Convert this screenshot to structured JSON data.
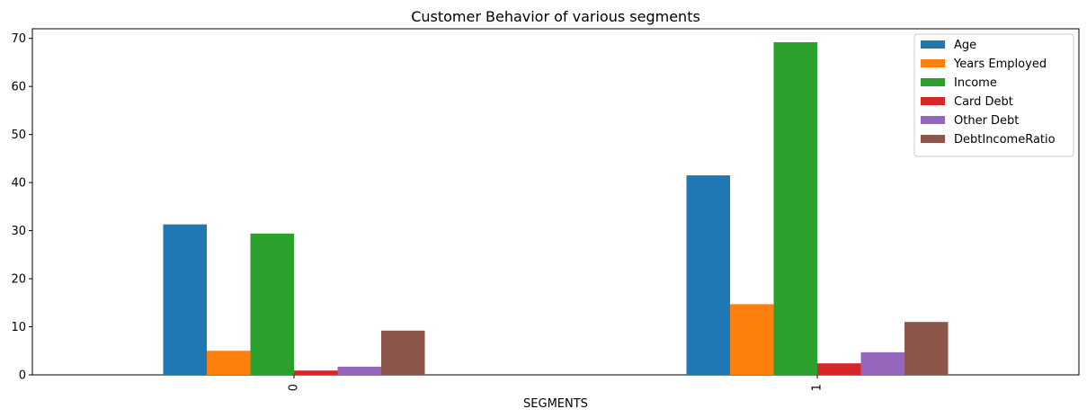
{
  "chart_data": {
    "type": "bar",
    "title": "Customer Behavior of various segments",
    "xlabel": "SEGMENTS",
    "ylabel": "",
    "categories": [
      "0",
      "1"
    ],
    "ylim": [
      0,
      72
    ],
    "yticks": [
      0,
      10,
      20,
      30,
      40,
      50,
      60,
      70
    ],
    "grid": false,
    "legend_position": "top-right",
    "series": [
      {
        "name": "Age",
        "color": "#1f77b4",
        "values": [
          31.3,
          41.5
        ]
      },
      {
        "name": "Years Employed",
        "color": "#ff7f0e",
        "values": [
          5.0,
          14.7
        ]
      },
      {
        "name": "Income",
        "color": "#2ca02c",
        "values": [
          29.4,
          69.2
        ]
      },
      {
        "name": "Card Debt",
        "color": "#d62728",
        "values": [
          0.9,
          2.4
        ]
      },
      {
        "name": "Other Debt",
        "color": "#9467bd",
        "values": [
          1.7,
          4.7
        ]
      },
      {
        "name": "DebtIncomeRatio",
        "color": "#8c564b",
        "values": [
          9.2,
          11.0
        ]
      }
    ]
  }
}
